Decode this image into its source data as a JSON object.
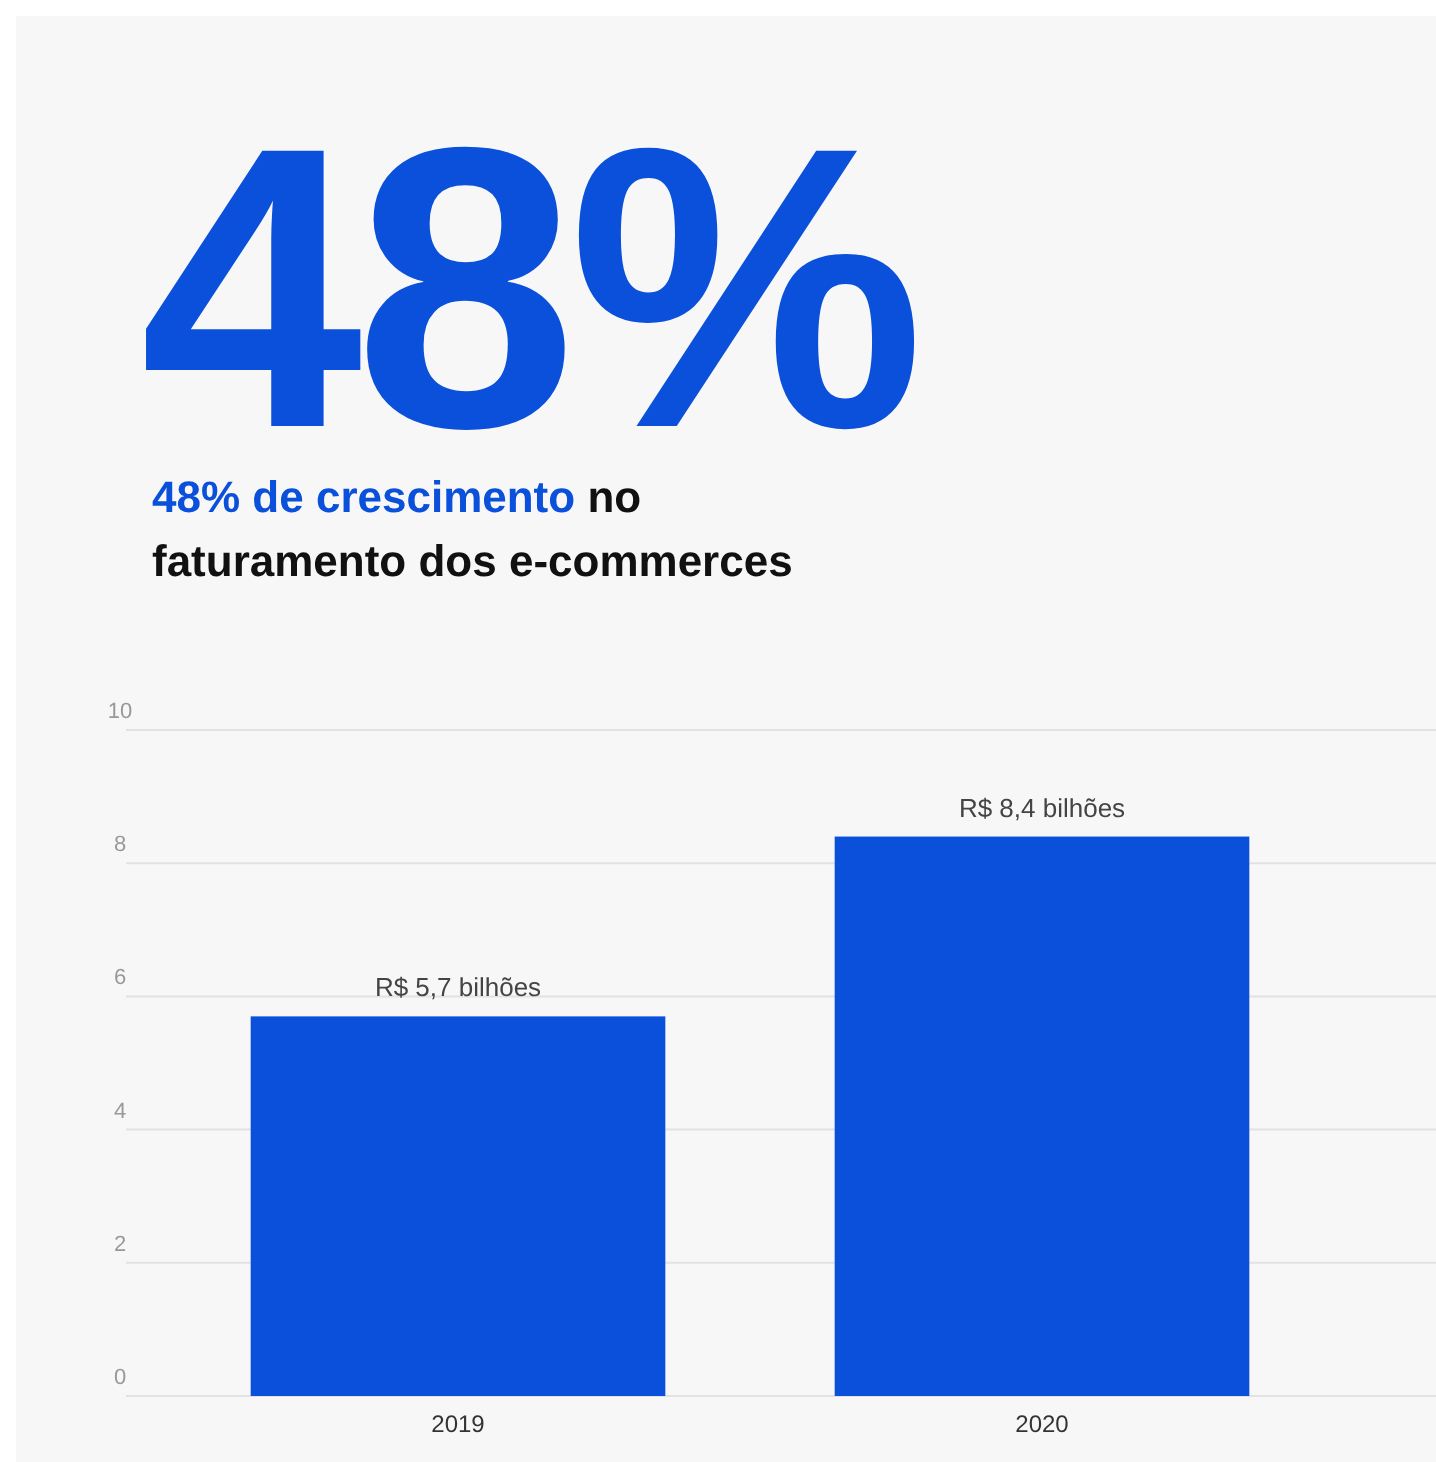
{
  "chart_data": {
    "type": "bar",
    "title": "48%",
    "subtitle": "48% de crescimento no faturamento dos e-commerces",
    "categories": [
      "2019",
      "2020"
    ],
    "values": [
      5.7,
      8.4
    ],
    "value_labels": [
      "R$ 5,7 bilhões",
      "R$ 8,4 bilhões"
    ],
    "color": "#0a50db",
    "ylim": [
      0,
      10
    ],
    "yticks": [
      0,
      2,
      4,
      6,
      8,
      10
    ],
    "grid": "y"
  }
}
